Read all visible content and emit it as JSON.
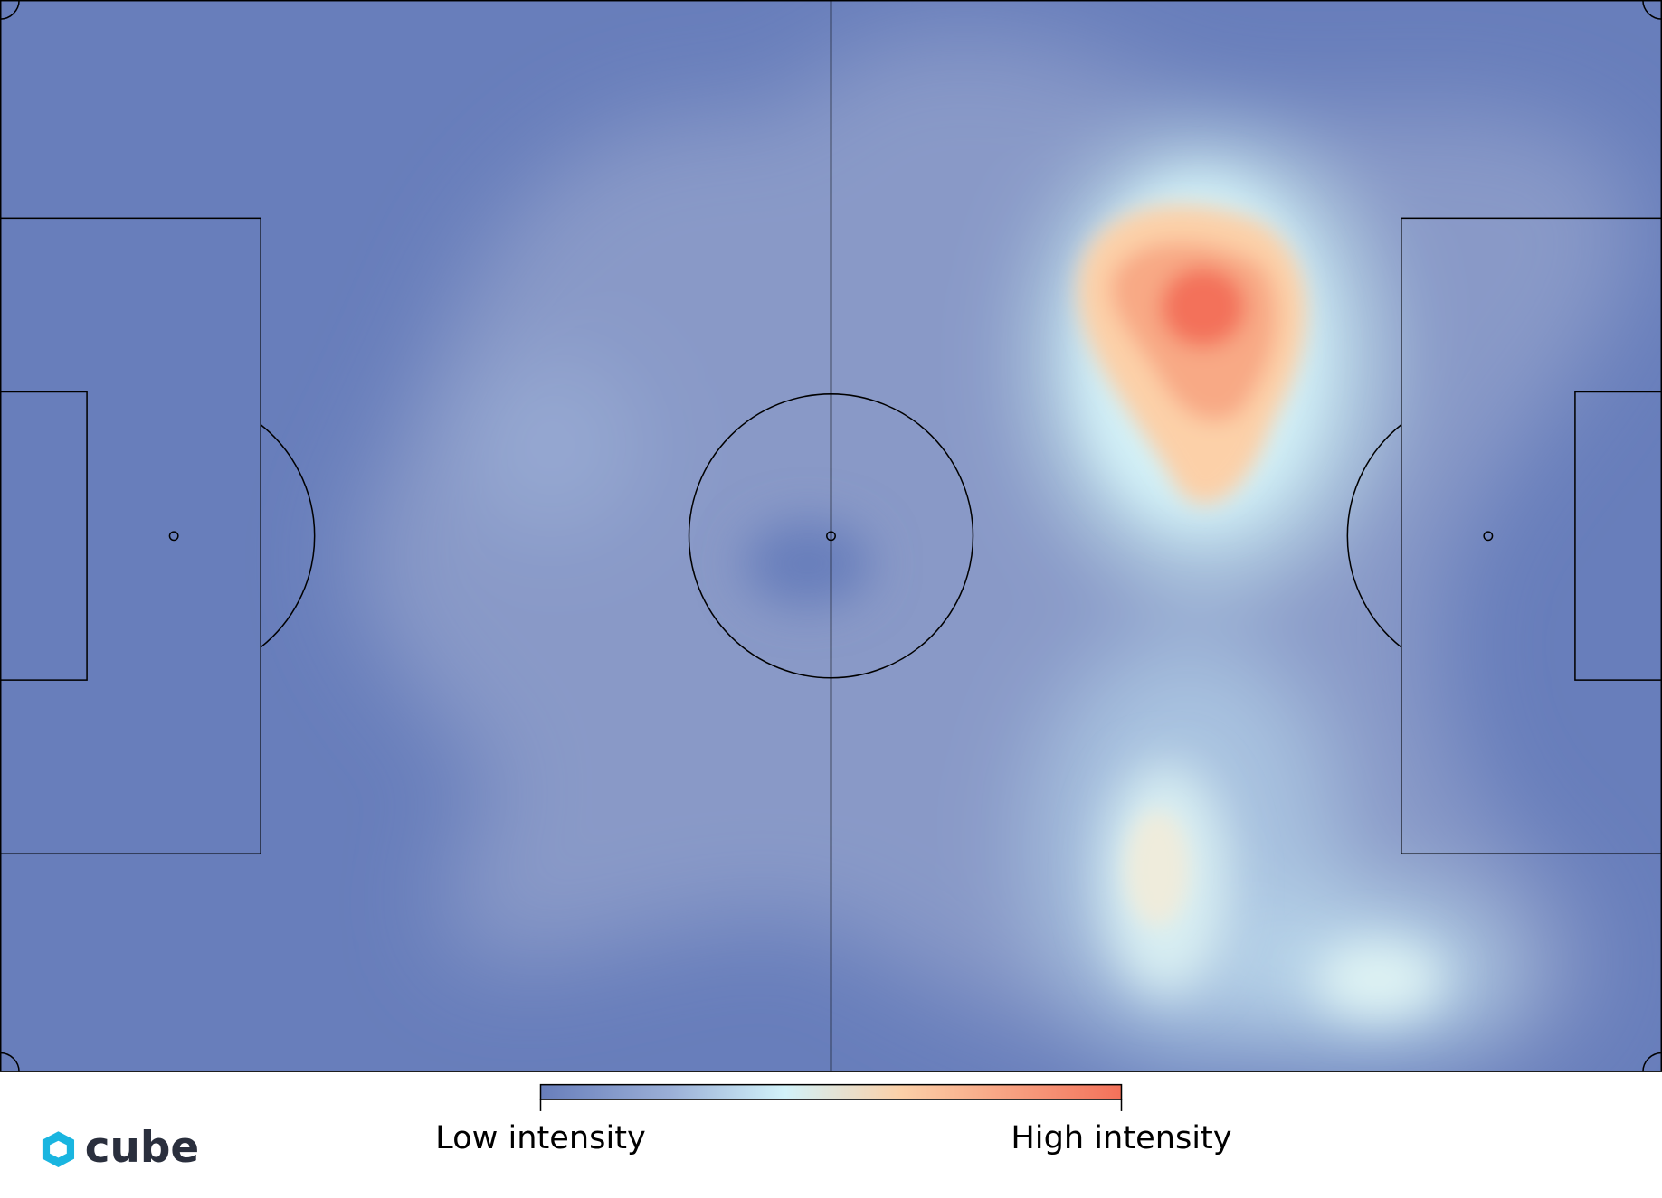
{
  "colorbar": {
    "low_label": "Low intensity",
    "high_label": "High intensity"
  },
  "logo": {
    "text": "cube"
  }
}
